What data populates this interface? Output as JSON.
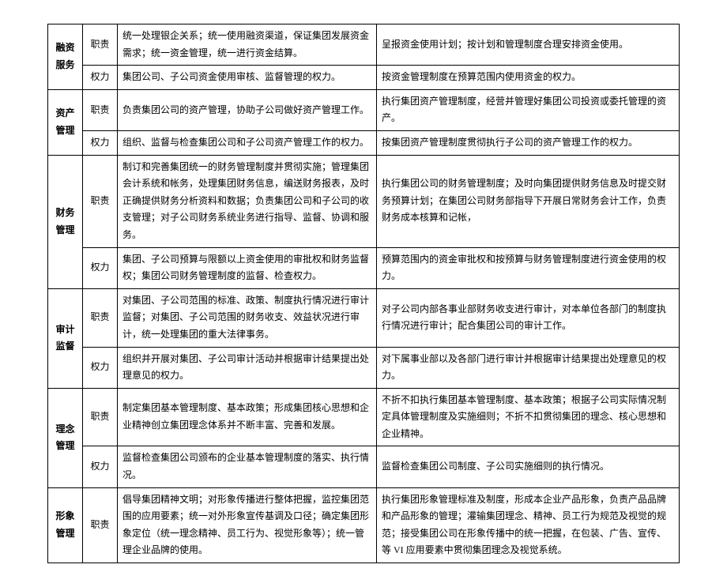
{
  "rows": [
    {
      "cat": "融资服务",
      "catRowspan": 2,
      "type": "职责",
      "c1": "统一处理银企关系；统一使用融资渠道，保证集团发展资金需求；统一资金管理，统一进行资金结算。",
      "c2": "呈报资金使用计划；按计划和管理制度合理安排资金使用。"
    },
    {
      "type": "权力",
      "c1": "集团公司、子公司资金使用审核、监督管理的权力。",
      "c2": "按资金管理制度在预算范围内使用资金的权力。"
    },
    {
      "cat": "资产管理",
      "catRowspan": 2,
      "type": "职责",
      "c1": "负责集团公司的资产管理，协助子公司做好资产管理工作。",
      "c2": "执行集团资产管理制度，经营并管理好集团公司投资或委托管理的资产。"
    },
    {
      "type": "权力",
      "c1": "组织、监督与检查集团公司和子公司资产管理工作的权力。",
      "c2": "按集团资产管理制度贯彻执行子公司的资产管理工作的权力。"
    },
    {
      "cat": "财务管理",
      "catRowspan": 2,
      "type": "职责",
      "c1": "制订和完善集团统一的财务管理制度并贯彻实施；管理集团会计系统和帐务，处理集团财务信息，编送财务报表，及时正确提供财务分析资料和数据；负责集团公司和子公司的收支管理；对子公司财务系统业务进行指导、监督、协调和服务。",
      "c2": "执行集团公司的财务管理制度；及时向集团提供财务信息及时提交财务预算计划；在集团公司财务部指导下开展日常财务会计工作，负责财务成本核算和记帐，"
    },
    {
      "type": "权力",
      "c1": "集团、子公司预算与限额以上资金使用的审批权和财务监督权；集团公司财务管理制度的监督、检查权力。",
      "c2": "预算范围内的资金审批权和按预算与财务管理制度进行资金使用的权力。"
    },
    {
      "cat": "审计监督",
      "catRowspan": 2,
      "type": "职责",
      "c1": "对集团、子公司范围的标准、政策、制度执行情况进行审计监督；对集团、子公司范围的财务收支、效益状况进行审计，统一处理集团的重大法律事务。",
      "c2": "对子公司内部各事业部财务收支进行审计，对本单位各部门的制度执行情况进行审计；配合集团公司的审计工作。"
    },
    {
      "type": "权力",
      "c1": "组织并开展对集团、子公司审计活动并根据审计结果提出处理意见的权力。",
      "c2": "对下属事业部以及各部门进行审计并根据审计结果提出处理意见的权力。"
    },
    {
      "cat": "理念管理",
      "catRowspan": 2,
      "type": "职责",
      "c1": "制定集团基本管理制度、基本政策；形成集团核心思想和企业精神创立集团理念体系并不断丰富、完善和发展。",
      "c2": "不折不扣执行集团基本管理制度、基本政策；根据子公司实际情况制定具体管理制度及实施细则；不折不扣贯彻集团的理念、核心思想和企业精神。"
    },
    {
      "type": "权力",
      "c1": "监督检查集团公司颁布的企业基本管理制度的落实、执行情况。",
      "c2": "监督检查集团公司制度、子公司实施细则的执行情况。"
    },
    {
      "cat": "形象管理",
      "catRowspan": 1,
      "type": "职责",
      "c1": "倡导集团精神文明；对形象传播进行整体把握，监控集团范围的应用要素；统一对外形象宣传基调及口径；确定集团形象定位（统一理念精神、员工行为、视觉形象等）；统一管理企业品牌的使用。",
      "c2": "执行集团形象管理标准及制度，形成本企业产品形象，负责产品品牌和产品形象的管理；灌输集团理念、精神、员工行为规范及视觉的规范；接受集团公司在形象传播中的统一把握，在包装、广告、宣传、等 VI 应用要素中贯彻集团理念及视觉系统。"
    }
  ]
}
